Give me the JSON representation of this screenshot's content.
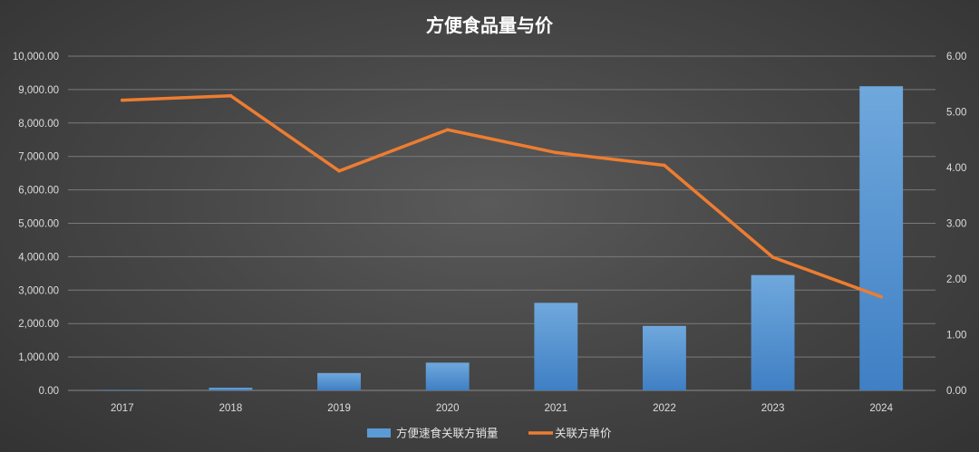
{
  "chart_data": {
    "type": "bar",
    "title": "方便食品量与价",
    "categories": [
      "2017",
      "2018",
      "2019",
      "2020",
      "2021",
      "2022",
      "2023",
      "2024"
    ],
    "series": [
      {
        "name": "方便速食关联方销量",
        "type": "bar",
        "axis": "left",
        "color": "#5b9bd5",
        "values": [
          15,
          80,
          520,
          830,
          2620,
          1930,
          3450,
          9100
        ]
      },
      {
        "name": "关联方单价",
        "type": "line",
        "axis": "right",
        "color": "#ed7d31",
        "values": [
          5.21,
          5.29,
          3.94,
          4.68,
          4.27,
          4.04,
          2.39,
          1.68
        ]
      }
    ],
    "y_left": {
      "lim": [
        0,
        10000
      ],
      "ticks": [
        "0.00",
        "1,000.00",
        "2,000.00",
        "3,000.00",
        "4,000.00",
        "5,000.00",
        "6,000.00",
        "7,000.00",
        "8,000.00",
        "9,000.00",
        "10,000.00"
      ]
    },
    "y_right": {
      "lim": [
        0,
        6
      ],
      "ticks": [
        "0.00",
        "1.00",
        "2.00",
        "3.00",
        "4.00",
        "5.00",
        "6.00"
      ]
    },
    "grid": true,
    "legend_position": "bottom"
  }
}
